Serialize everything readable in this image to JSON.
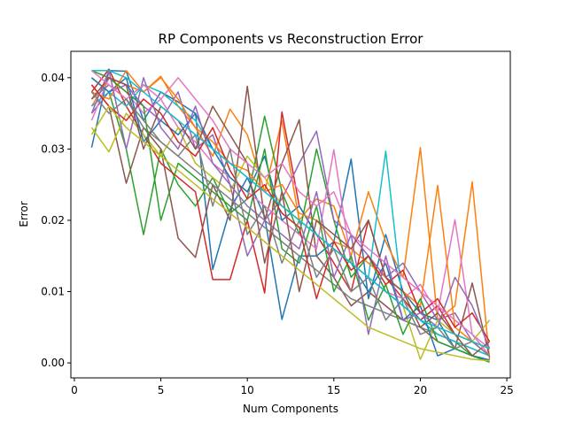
{
  "chart_data": {
    "type": "line",
    "title": "RP Components vs Reconstruction Error",
    "xlabel": "Num Components",
    "ylabel": "Error",
    "xlim": [
      -0.2,
      25.2
    ],
    "ylim": [
      -0.0021,
      0.0437
    ],
    "xticks": [
      0,
      5,
      10,
      15,
      20,
      25
    ],
    "xtick_labels": [
      "0",
      "5",
      "10",
      "15",
      "20",
      "25"
    ],
    "yticks": [
      0.0,
      0.01,
      0.02,
      0.03,
      0.04
    ],
    "ytick_labels": [
      "0.00",
      "0.01",
      "0.02",
      "0.03",
      "0.04"
    ],
    "grid": false,
    "legend": "none",
    "x": [
      1,
      2,
      3,
      4,
      5,
      6,
      7,
      8,
      9,
      10,
      11,
      12,
      13,
      14,
      15,
      16,
      17,
      18,
      19,
      20,
      21,
      22,
      23,
      24
    ],
    "palette": [
      "#1f77b4",
      "#ff7f0e",
      "#2ca02c",
      "#d62728",
      "#9467bd",
      "#8c564b",
      "#e377c2",
      "#7f7f7f",
      "#bcbd22",
      "#17becf"
    ],
    "series": [
      {
        "values": [
          0.0302,
          0.041,
          0.0409,
          0.034,
          0.038,
          0.0366,
          0.035,
          0.0131,
          0.0215,
          0.026,
          0.0205,
          0.0061,
          0.015,
          0.015,
          0.017,
          0.0286,
          0.009,
          0.018,
          0.01,
          0.007,
          0.006,
          0.002,
          0.001,
          0.0004
        ]
      },
      {
        "values": [
          0.036,
          0.04,
          0.039,
          0.038,
          0.0402,
          0.036,
          0.033,
          0.029,
          0.0356,
          0.032,
          0.024,
          0.034,
          0.02,
          0.023,
          0.022,
          0.015,
          0.024,
          0.017,
          0.012,
          0.0302,
          0.006,
          0.008,
          0.0254,
          0.0005
        ]
      },
      {
        "values": [
          0.04,
          0.038,
          0.03,
          0.018,
          0.03,
          0.025,
          0.022,
          0.026,
          0.021,
          0.023,
          0.0346,
          0.024,
          0.018,
          0.03,
          0.02,
          0.012,
          0.015,
          0.01,
          0.008,
          0.006,
          0.004,
          0.003,
          0.001,
          0.0002
        ]
      },
      {
        "values": [
          0.038,
          0.0412,
          0.036,
          0.032,
          0.028,
          0.026,
          0.024,
          0.0117,
          0.0117,
          0.02,
          0.0098,
          0.0352,
          0.022,
          0.018,
          0.014,
          0.01,
          0.02,
          0.012,
          0.009,
          0.006,
          0.008,
          0.004,
          0.003,
          0.001
        ]
      },
      {
        "values": [
          0.035,
          0.038,
          0.039,
          0.036,
          0.034,
          0.038,
          0.03,
          0.032,
          0.025,
          0.015,
          0.02,
          0.023,
          0.028,
          0.0325,
          0.02,
          0.018,
          0.015,
          0.012,
          0.014,
          0.01,
          0.006,
          0.007,
          0.003,
          0.002
        ]
      },
      {
        "values": [
          0.039,
          0.036,
          0.0252,
          0.033,
          0.03,
          0.0175,
          0.0148,
          0.025,
          0.02,
          0.0388,
          0.02,
          0.028,
          0.0341,
          0.015,
          0.012,
          0.008,
          0.01,
          0.008,
          0.006,
          0.005,
          0.003,
          0.002,
          0.0112,
          0.0008
        ]
      },
      {
        "values": [
          0.034,
          0.04,
          0.038,
          0.035,
          0.037,
          0.033,
          0.031,
          0.028,
          0.026,
          0.024,
          0.022,
          0.02,
          0.018,
          0.016,
          0.0299,
          0.014,
          0.012,
          0.01,
          0.009,
          0.011,
          0.007,
          0.0201,
          0.004,
          0.002
        ]
      },
      {
        "values": [
          0.037,
          0.039,
          0.037,
          0.033,
          0.031,
          0.029,
          0.027,
          0.025,
          0.023,
          0.021,
          0.019,
          0.017,
          0.015,
          0.013,
          0.011,
          0.009,
          0.008,
          0.007,
          0.006,
          0.005,
          0.004,
          0.003,
          0.002,
          0.001
        ]
      },
      {
        "values": [
          0.033,
          0.0296,
          0.035,
          0.032,
          0.029,
          0.033,
          0.028,
          0.026,
          0.024,
          0.029,
          0.026,
          0.022,
          0.02,
          0.018,
          0.016,
          0.014,
          0.012,
          0.01,
          0.008,
          0.0005,
          0.006,
          0.004,
          0.003,
          0.006
        ]
      },
      {
        "values": [
          0.036,
          0.038,
          0.036,
          0.039,
          0.038,
          0.036,
          0.034,
          0.03,
          0.028,
          0.026,
          0.024,
          0.022,
          0.02,
          0.018,
          0.016,
          0.014,
          0.012,
          0.0297,
          0.008,
          0.006,
          0.004,
          0.003,
          0.002,
          0.001
        ]
      },
      {
        "values": [
          0.04,
          0.038,
          0.04,
          0.031,
          0.034,
          0.032,
          0.035,
          0.03,
          0.026,
          0.024,
          0.029,
          0.02,
          0.022,
          0.018,
          0.016,
          0.014,
          0.01,
          0.014,
          0.006,
          0.008,
          0.001,
          0.002,
          0.001,
          0.0004
        ]
      },
      {
        "values": [
          0.038,
          0.037,
          0.041,
          0.038,
          0.04,
          0.037,
          0.033,
          0.031,
          0.028,
          0.027,
          0.024,
          0.025,
          0.021,
          0.02,
          0.017,
          0.016,
          0.014,
          0.012,
          0.01,
          0.008,
          0.0249,
          0.005,
          0.003,
          0.002
        ]
      },
      {
        "values": [
          0.041,
          0.04,
          0.038,
          0.036,
          0.02,
          0.028,
          0.026,
          0.024,
          0.022,
          0.02,
          0.03,
          0.016,
          0.014,
          0.022,
          0.01,
          0.015,
          0.006,
          0.011,
          0.004,
          0.009,
          0.003,
          0.002,
          0.001,
          0.0001
        ]
      },
      {
        "values": [
          0.039,
          0.036,
          0.034,
          0.037,
          0.035,
          0.031,
          0.029,
          0.033,
          0.027,
          0.023,
          0.025,
          0.021,
          0.019,
          0.009,
          0.017,
          0.013,
          0.015,
          0.011,
          0.013,
          0.007,
          0.009,
          0.005,
          0.007,
          0.003
        ]
      },
      {
        "values": [
          0.035,
          0.041,
          0.03,
          0.04,
          0.033,
          0.03,
          0.036,
          0.028,
          0.025,
          0.022,
          0.02,
          0.018,
          0.016,
          0.024,
          0.012,
          0.018,
          0.004,
          0.015,
          0.006,
          0.007,
          0.005,
          0.012,
          0.008,
          0.002
        ]
      },
      {
        "values": [
          0.037,
          0.04,
          0.039,
          0.03,
          0.036,
          0.034,
          0.03,
          0.036,
          0.032,
          0.028,
          0.014,
          0.024,
          0.01,
          0.02,
          0.018,
          0.016,
          0.02,
          0.012,
          0.01,
          0.005,
          0.007,
          0.004,
          0.001,
          0.003
        ]
      },
      {
        "values": [
          0.041,
          0.039,
          0.037,
          0.039,
          0.037,
          0.04,
          0.037,
          0.034,
          0.03,
          0.028,
          0.026,
          0.028,
          0.024,
          0.022,
          0.024,
          0.018,
          0.016,
          0.014,
          0.012,
          0.01,
          0.008,
          0.006,
          0.004,
          0.001
        ]
      },
      {
        "values": [
          0.038,
          0.035,
          0.037,
          0.034,
          0.031,
          0.029,
          0.032,
          0.022,
          0.03,
          0.018,
          0.022,
          0.014,
          0.02,
          0.012,
          0.016,
          0.01,
          0.012,
          0.006,
          0.009,
          0.004,
          0.005,
          0.002,
          0.003,
          0.001
        ]
      },
      {
        "values": [
          0.032,
          0.036,
          0.033,
          0.031,
          0.029,
          0.027,
          0.025,
          0.023,
          0.021,
          0.019,
          0.017,
          0.015,
          0.013,
          0.011,
          0.009,
          0.007,
          0.005,
          0.004,
          0.003,
          0.002,
          0.0015,
          0.001,
          0.0005,
          0.0003
        ]
      },
      {
        "values": [
          0.041,
          0.041,
          0.04,
          0.038,
          0.036,
          0.034,
          0.032,
          0.03,
          0.028,
          0.026,
          0.024,
          0.022,
          0.02,
          0.018,
          0.016,
          0.014,
          0.012,
          0.01,
          0.008,
          0.006,
          0.005,
          0.004,
          0.003,
          0.002
        ]
      }
    ]
  }
}
